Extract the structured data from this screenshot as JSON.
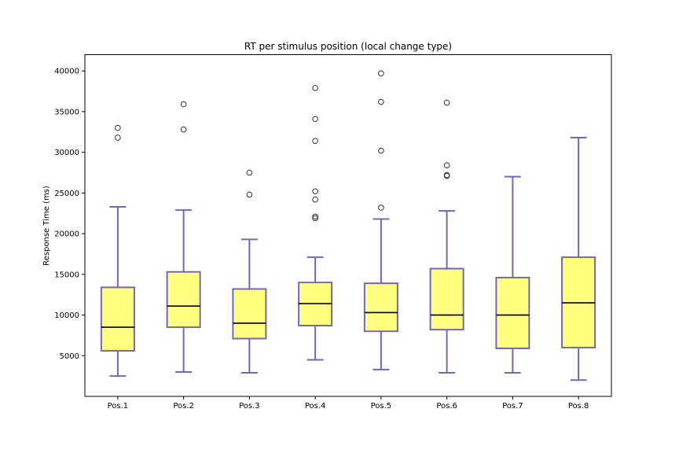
{
  "chart_data": {
    "type": "box",
    "title": "RT per stimulus position (local change type)",
    "xlabel": "",
    "ylabel": "Response Time (ms)",
    "ylim": [
      0,
      42000
    ],
    "yticks": [
      5000,
      10000,
      15000,
      20000,
      25000,
      30000,
      35000,
      40000
    ],
    "grid": false,
    "colors": {
      "box_fill": "#FFFF80",
      "box_edge": "#7366BD",
      "median": "#000000",
      "flier_edge": "#333333"
    },
    "categories": [
      "Pos.1",
      "Pos.2",
      "Pos.3",
      "Pos.4",
      "Pos.5",
      "Pos.6",
      "Pos.7",
      "Pos.8"
    ],
    "boxes": [
      {
        "label": "Pos.1",
        "whislo": 2500,
        "q1": 5600,
        "med": 8500,
        "q3": 13400,
        "whishi": 23300,
        "fliers": [
          31800,
          33000
        ]
      },
      {
        "label": "Pos.2",
        "whislo": 3000,
        "q1": 8500,
        "med": 11100,
        "q3": 15300,
        "whishi": 22900,
        "fliers": [
          32800,
          35900
        ]
      },
      {
        "label": "Pos.3",
        "whislo": 2900,
        "q1": 7100,
        "med": 9000,
        "q3": 13200,
        "whishi": 19300,
        "fliers": [
          24800,
          27500
        ]
      },
      {
        "label": "Pos.4",
        "whislo": 4500,
        "q1": 8700,
        "med": 11400,
        "q3": 14000,
        "whishi": 17100,
        "fliers": [
          21900,
          22100,
          24200,
          25200,
          31400,
          34100,
          37900
        ]
      },
      {
        "label": "Pos.5",
        "whislo": 3300,
        "q1": 8000,
        "med": 10300,
        "q3": 13900,
        "whishi": 21800,
        "fliers": [
          23200,
          30200,
          36200,
          39700
        ]
      },
      {
        "label": "Pos.6",
        "whislo": 2900,
        "q1": 8200,
        "med": 10000,
        "q3": 15700,
        "whishi": 22800,
        "fliers": [
          27100,
          27200,
          28400,
          36100
        ]
      },
      {
        "label": "Pos.7",
        "whislo": 2900,
        "q1": 5900,
        "med": 10000,
        "q3": 14600,
        "whishi": 27000,
        "fliers": []
      },
      {
        "label": "Pos.8",
        "whislo": 2000,
        "q1": 6000,
        "med": 11500,
        "q3": 17100,
        "whishi": 31800,
        "fliers": []
      }
    ]
  }
}
